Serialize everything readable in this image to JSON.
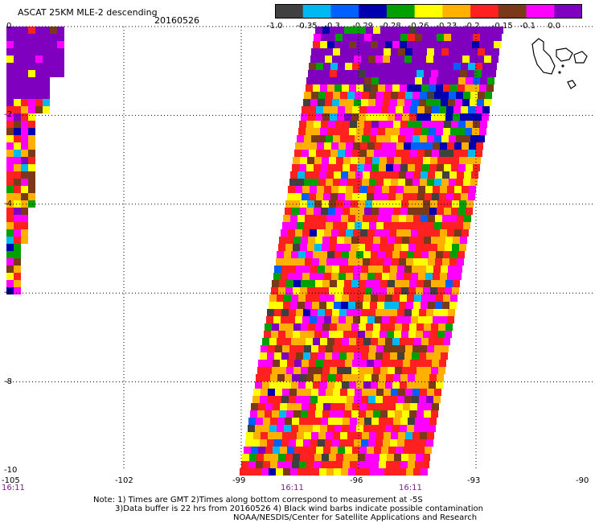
{
  "header": {
    "title": "ASCAT 25KM MLE-2 descending",
    "date": "20160526"
  },
  "colorbar": {
    "labels": [
      "-1.0",
      "-0.35",
      "-0.3",
      "-0.29",
      "-0.28",
      "-0.26",
      "-0.23",
      "-0.2",
      "-0.15",
      "-0.1",
      "0.0"
    ],
    "colors": [
      "#404040",
      "#00b8f0",
      "#0060ff",
      "#0000b0",
      "#00a000",
      "#ffff00",
      "#ffb000",
      "#ff2020",
      "#7a3a1a",
      "#ff00ff",
      "#8000c0"
    ]
  },
  "axes": {
    "lat_labels": [
      "0",
      "-2",
      "-4",
      "-6",
      "-8",
      "-10"
    ],
    "lon_labels": [
      "-105",
      "-102",
      "-99",
      "-96",
      "-93",
      "-90"
    ],
    "time_labels": [
      "16:11",
      "16:11",
      "16:11"
    ]
  },
  "notes": {
    "line1": "Note: 1) Times are GMT 2)Times along bottom correspond to measurement at -5S",
    "line2": "3)Data buffer is 22 hrs from 20160526 4) Black wind barbs indicate possible contamination",
    "line3": "NOAA/NESDIS/Center for Satellite Applications and Research"
  }
}
